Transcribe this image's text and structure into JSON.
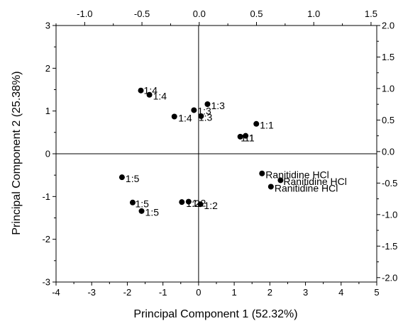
{
  "chart_data": {
    "type": "scatter",
    "title": "",
    "xlabel": "Principal Component 1 (52.32%)",
    "ylabel": "Principal Component 2 (25.38%)",
    "xlim": [
      -4,
      5
    ],
    "ylim": [
      -3,
      3
    ],
    "x_ticks": [
      "-4",
      "-3",
      "-2",
      "-1",
      "0",
      "1",
      "2",
      "3",
      "4",
      "5"
    ],
    "y_ticks": [
      "-3",
      "-2",
      "-1",
      "0",
      "1",
      "2",
      "3"
    ],
    "top_axis": {
      "lim": [
        -1.25,
        1.55
      ],
      "ticks": [
        "-1.0",
        "-0.5",
        "0.0",
        "0.5",
        "1.0",
        "1.5"
      ]
    },
    "right_axis": {
      "lim": [
        -2.07,
        2.0
      ],
      "ticks": [
        "-2.0",
        "-1.5",
        "-1.0",
        "-0.5",
        "0.0",
        "0.5",
        "1.0",
        "1.5",
        "2.0"
      ]
    },
    "grid": false,
    "zero_lines": true,
    "marker_color": "#000000",
    "points": [
      {
        "x": -1.62,
        "y": 1.48
      },
      {
        "x": -1.38,
        "y": 1.38
      },
      {
        "x": -0.68,
        "y": 0.87
      },
      {
        "x": -0.13,
        "y": 1.02
      },
      {
        "x": 0.07,
        "y": 0.88
      },
      {
        "x": 0.25,
        "y": 1.16
      },
      {
        "x": 1.62,
        "y": 0.7
      },
      {
        "x": 1.17,
        "y": 0.4
      },
      {
        "x": 1.32,
        "y": 0.42
      },
      {
        "x": -2.15,
        "y": -0.55
      },
      {
        "x": -1.85,
        "y": -1.14
      },
      {
        "x": -1.6,
        "y": -1.34
      },
      {
        "x": -0.47,
        "y": -1.13
      },
      {
        "x": -0.28,
        "y": -1.12
      },
      {
        "x": 0.05,
        "y": -1.18
      },
      {
        "x": 1.78,
        "y": -0.46
      },
      {
        "x": 2.3,
        "y": -0.62
      },
      {
        "x": 2.03,
        "y": -0.77
      }
    ],
    "annotations": [
      {
        "text": "1:4",
        "x": -1.54,
        "y": 1.48
      },
      {
        "text": "1:4",
        "x": -1.28,
        "y": 1.35
      },
      {
        "text": "1:4",
        "x": -0.57,
        "y": 0.84
      },
      {
        "text": "1:3",
        "x": -0.03,
        "y": 1.0
      },
      {
        "text": "1:3",
        "x": 0.0,
        "y": 0.85
      },
      {
        "text": "1:3",
        "x": 0.35,
        "y": 1.13
      },
      {
        "text": "1:1",
        "x": 1.72,
        "y": 0.67
      },
      {
        "text": "11",
        "x": 1.28,
        "y": 0.37
      },
      {
        "text": "1:1",
        "x": 1.18,
        "y": 0.37
      },
      {
        "text": "1:5",
        "x": -2.05,
        "y": -0.58
      },
      {
        "text": "1:5",
        "x": -1.78,
        "y": -1.17
      },
      {
        "text": "1:5",
        "x": -1.5,
        "y": -1.37
      },
      {
        "text": "1:2",
        "x": -0.35,
        "y": -1.16
      },
      {
        "text": "1:2",
        "x": -0.18,
        "y": -1.15
      },
      {
        "text": "1:2",
        "x": 0.15,
        "y": -1.21
      },
      {
        "text": "Ranitidine HCl",
        "x": 1.88,
        "y": -0.49
      },
      {
        "text": "Ranitidine HCl",
        "x": 2.38,
        "y": -0.65
      },
      {
        "text": "Ranitidine HCl",
        "x": 2.13,
        "y": -0.8
      }
    ]
  }
}
